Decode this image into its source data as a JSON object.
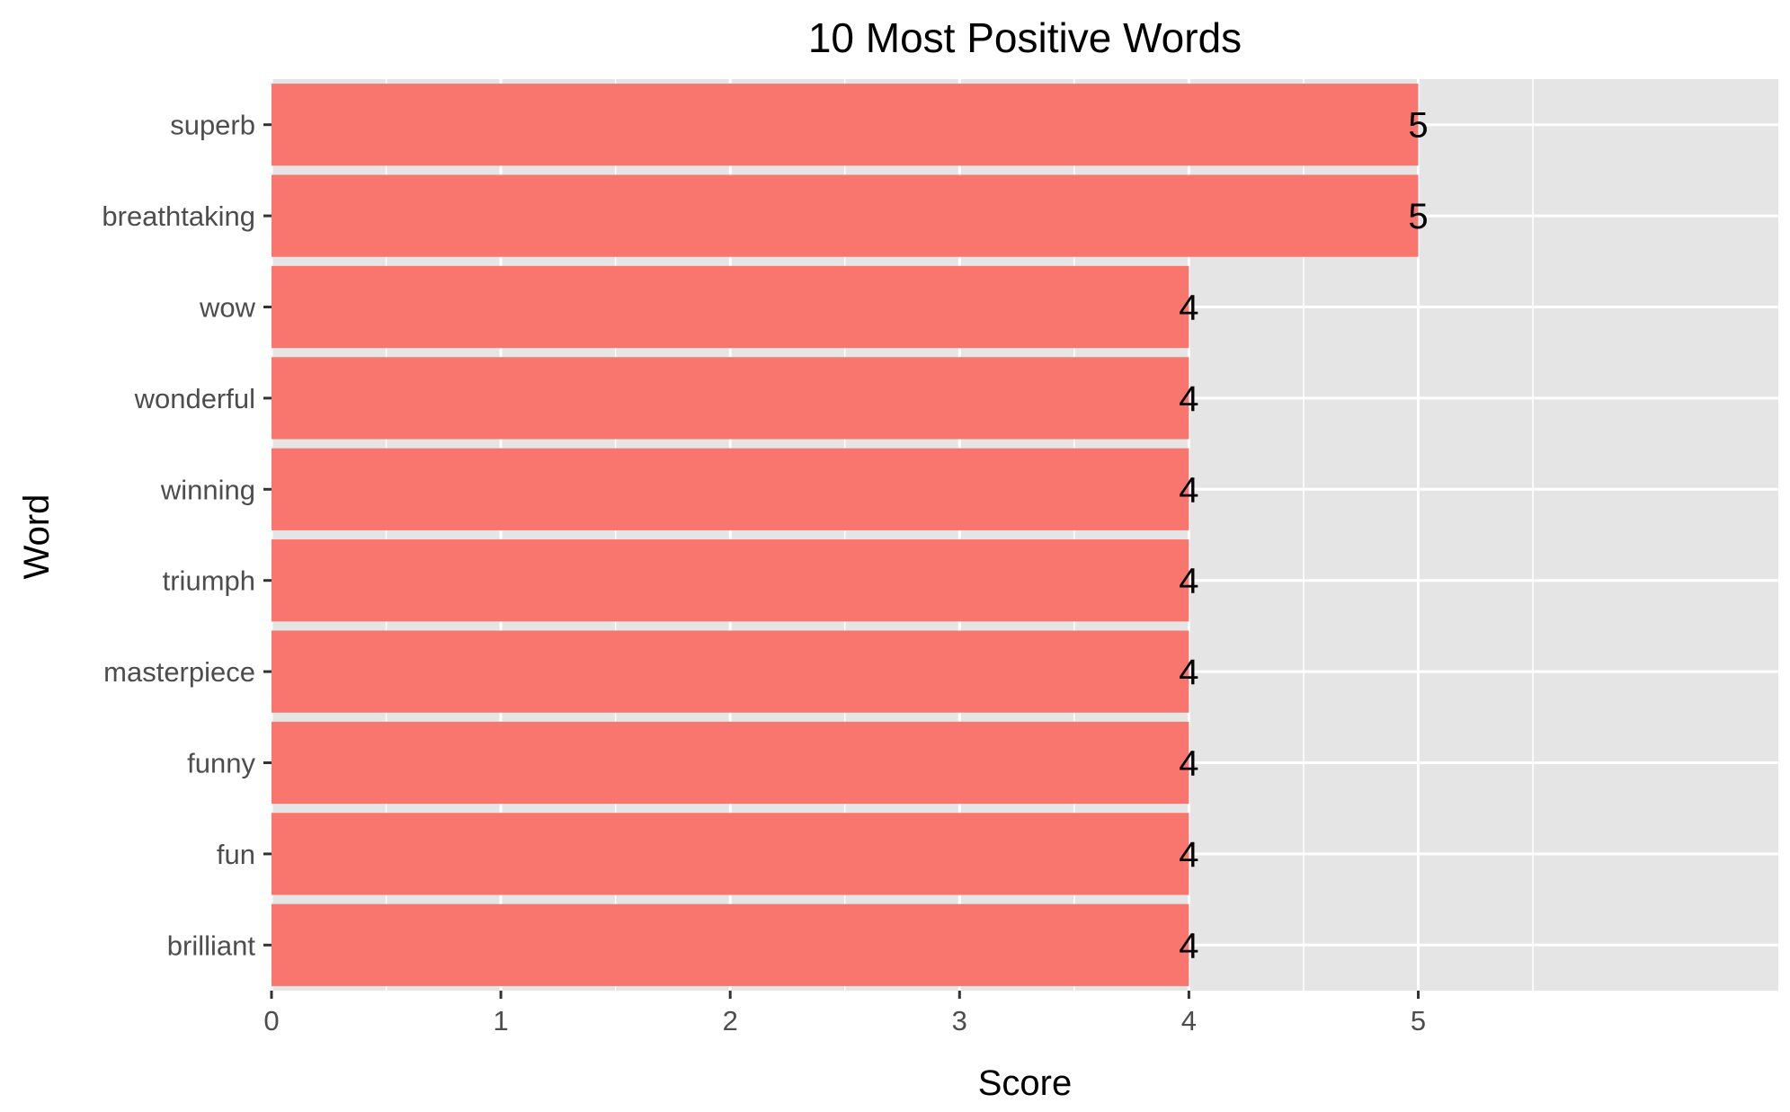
{
  "chart_data": {
    "type": "bar",
    "orientation": "horizontal",
    "title": "10 Most Positive Words",
    "xlabel": "Score",
    "ylabel": "Word",
    "categories": [
      "superb",
      "breathtaking",
      "wow",
      "wonderful",
      "winning",
      "triumph",
      "masterpiece",
      "funny",
      "fun",
      "brilliant"
    ],
    "values": [
      5,
      5,
      4,
      4,
      4,
      4,
      4,
      4,
      4,
      4
    ],
    "data_labels": [
      "5",
      "5",
      "4",
      "4",
      "4",
      "4",
      "4",
      "4",
      "4",
      "4"
    ],
    "x_ticks": [
      0,
      1,
      2,
      3,
      4,
      5
    ],
    "x_tick_labels": [
      "0",
      "1",
      "2",
      "3",
      "4",
      "5"
    ],
    "xlim": [
      0,
      6.57
    ],
    "grid": true,
    "legend": "none",
    "colors": {
      "bar": "#f8766d",
      "panel": "#e5e5e5",
      "grid": "#ffffff",
      "tick": "#333333",
      "tick_label": "#4d4d4d"
    }
  }
}
